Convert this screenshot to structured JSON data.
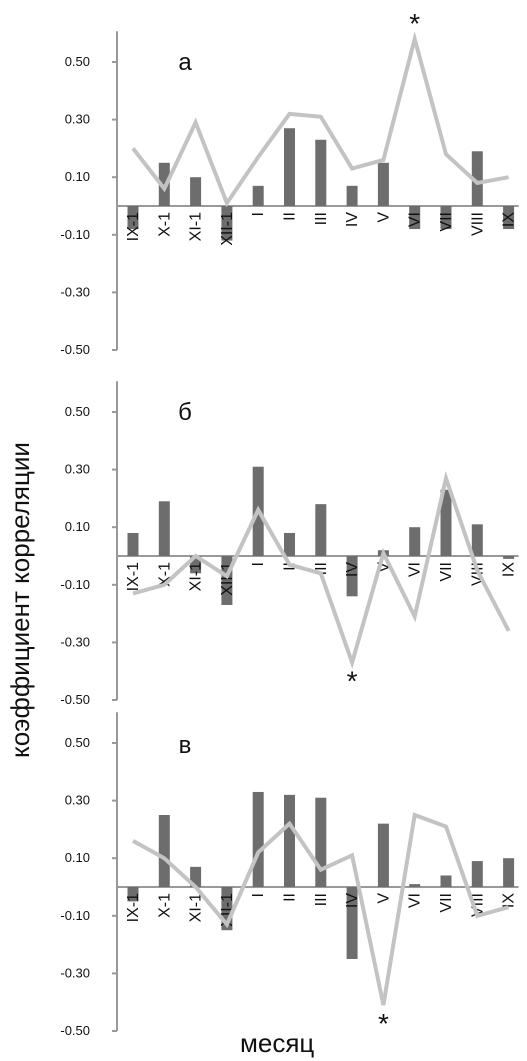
{
  "chart_data": [
    {
      "type": "bar",
      "panel_label": "а",
      "categories": [
        "IX-1",
        "X-1",
        "XI-1",
        "XII-1",
        "I",
        "II",
        "III",
        "IV",
        "V",
        "VI",
        "VII",
        "VIII",
        "IX"
      ],
      "series": [
        {
          "values": [
            -0.08,
            0.15,
            0.1,
            -0.12,
            0.07,
            0.27,
            0.23,
            0.07,
            0.15,
            -0.08,
            -0.08,
            0.19,
            -0.08
          ]
        },
        {
          "values": [
            0.2,
            0.06,
            0.29,
            0.01,
            0.17,
            0.32,
            0.31,
            0.13,
            0.16,
            0.58,
            0.18,
            0.08,
            0.1
          ]
        }
      ],
      "significance_marker": {
        "symbol": "*",
        "category": "VI"
      },
      "yticks": [
        "0.50",
        "0.30",
        "0.10",
        "-0.10",
        "-0.30",
        "-0.50"
      ],
      "ylim": [
        -0.5,
        0.6
      ]
    },
    {
      "type": "bar",
      "panel_label": "б",
      "categories": [
        "IX-1",
        "X-1",
        "XI-1",
        "XII-1",
        "I",
        "II",
        "III",
        "IV",
        "V",
        "VI",
        "VII",
        "VIII",
        "IX"
      ],
      "series": [
        {
          "values": [
            0.08,
            0.19,
            -0.06,
            -0.17,
            0.31,
            0.08,
            0.18,
            -0.14,
            0.02,
            0.1,
            0.23,
            0.11,
            -0.01
          ]
        },
        {
          "values": [
            -0.13,
            -0.1,
            0.0,
            -0.07,
            0.16,
            -0.03,
            -0.06,
            -0.37,
            0.01,
            -0.21,
            0.27,
            -0.05,
            -0.26
          ]
        }
      ],
      "significance_marker": {
        "symbol": "*",
        "category": "IV"
      },
      "yticks": [
        "0.50",
        "0.30",
        "0.10",
        "-0.10",
        "-0.30",
        "-0.50"
      ],
      "ylim": [
        -0.5,
        0.6
      ]
    },
    {
      "type": "bar",
      "panel_label": "в",
      "categories": [
        "IX-1",
        "X-1",
        "XI-1",
        "XII-1",
        "I",
        "II",
        "III",
        "IV",
        "V",
        "VI",
        "VII",
        "VIII",
        "IX"
      ],
      "series": [
        {
          "values": [
            -0.05,
            0.25,
            0.07,
            -0.15,
            0.33,
            0.32,
            0.31,
            -0.25,
            0.22,
            0.01,
            0.04,
            0.09,
            0.1
          ]
        },
        {
          "values": [
            0.16,
            0.1,
            0.0,
            -0.13,
            0.12,
            0.22,
            0.06,
            0.11,
            -0.41,
            0.25,
            0.21,
            -0.1,
            -0.07
          ]
        }
      ],
      "significance_marker": {
        "symbol": "*",
        "category": "V"
      },
      "yticks": [
        "0.50",
        "0.30",
        "0.10",
        "-0.10",
        "-0.30",
        "-0.50"
      ],
      "ylim": [
        -0.5,
        0.6
      ]
    }
  ],
  "ylabel": "коэффициент корреляции",
  "xlabel": "месяц",
  "colors": {
    "bars": "#6d6d6d",
    "line": "#c3c3c3",
    "axis": "#999999",
    "text": "#111111"
  }
}
